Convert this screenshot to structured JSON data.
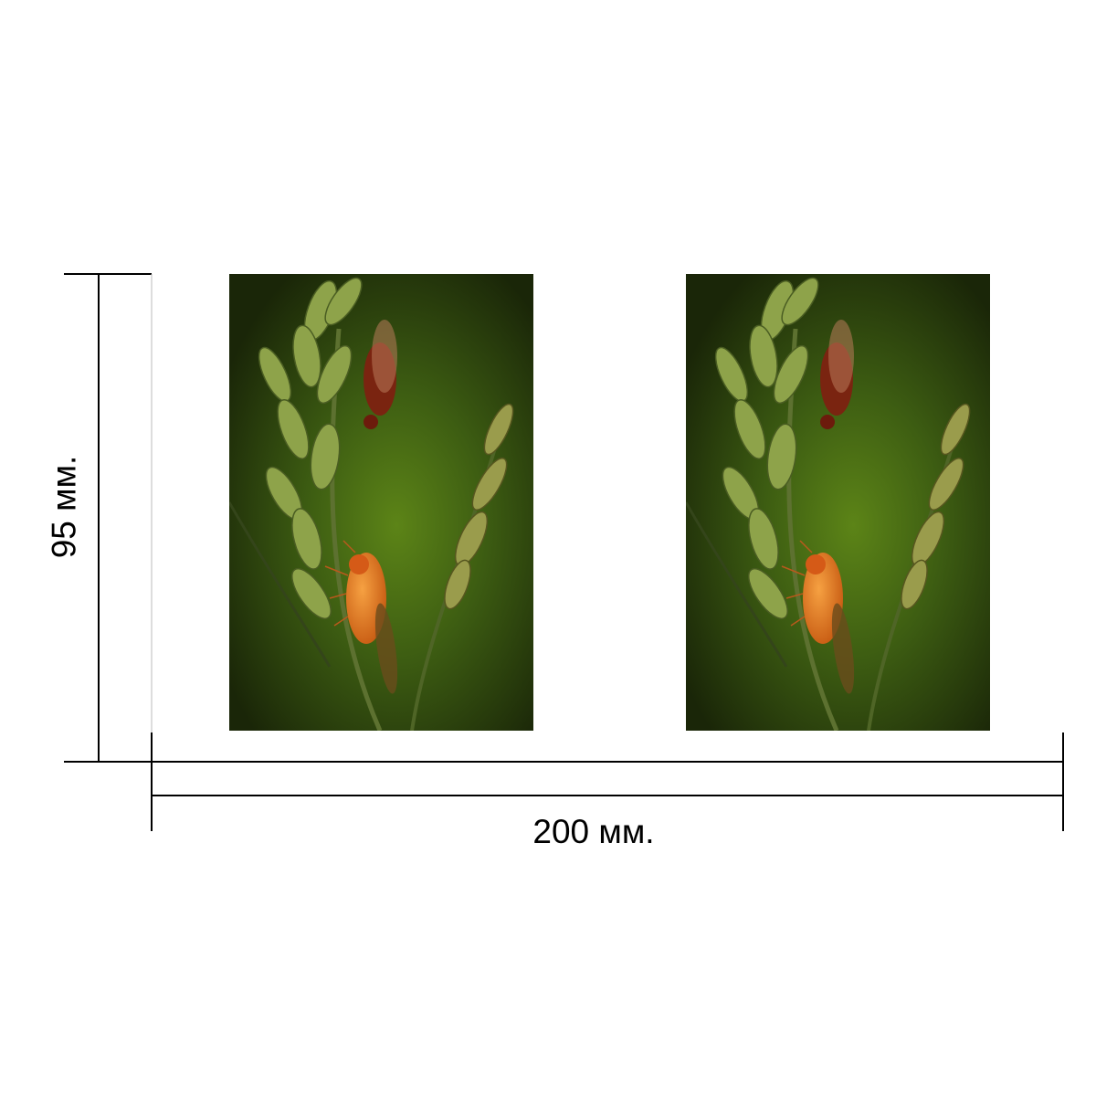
{
  "dimensions": {
    "width_label": "200 мм.",
    "height_label": "95 мм."
  },
  "panels": [
    {
      "subject": "orange-fly-on-grass-photo"
    },
    {
      "subject": "orange-fly-on-grass-photo"
    }
  ],
  "colors": {
    "background": "#ffffff",
    "line": "#000000",
    "photo_dark": "#1b2a0c",
    "photo_mid": "#4f7414",
    "fly": "#e37a1f"
  }
}
